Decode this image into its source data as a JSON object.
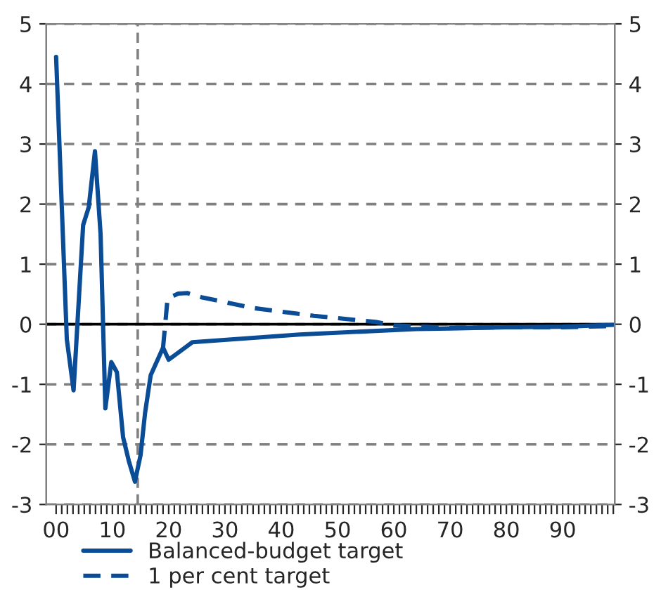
{
  "chart_data": {
    "type": "line",
    "series": [
      {
        "name": "Balanced-budget target",
        "color": "#0b4c96",
        "line_style": "solid",
        "x": [
          0,
          1.9,
          3.1,
          4.8,
          5.8,
          6.9,
          7.9,
          8.75,
          9.8,
          10.8,
          11.9,
          12.9,
          14,
          15,
          15.8,
          16.8,
          19,
          20,
          24.2,
          43.3,
          64,
          70,
          80,
          90,
          99
        ],
        "values": [
          4.45,
          -0.25,
          -1.1,
          1.65,
          1.95,
          2.88,
          1.5,
          -1.4,
          -0.63,
          -0.8,
          -1.88,
          -2.27,
          -2.62,
          -2.18,
          -1.48,
          -0.85,
          -0.39,
          -0.59,
          -0.3,
          -0.17,
          -0.08,
          -0.07,
          -0.05,
          -0.04,
          -0.01
        ]
      },
      {
        "name": "1 per cent target",
        "color": "#0b4c96",
        "line_style": "dashed",
        "x": [
          19,
          19.8,
          21.7,
          23.3,
          25.8,
          35,
          45.8,
          56.7,
          60,
          70,
          80,
          90,
          99
        ],
        "values": [
          -0.39,
          0.43,
          0.51,
          0.52,
          0.45,
          0.27,
          0.14,
          0.04,
          -0.02,
          -0.06,
          -0.05,
          -0.05,
          -0.03
        ]
      }
    ],
    "xlim": [
      -1.75,
      99.25
    ],
    "xticks": [
      {
        "value": 0,
        "label": "00"
      },
      {
        "value": 1,
        "label": null
      },
      {
        "value": 2,
        "label": null
      },
      {
        "value": 3,
        "label": null
      },
      {
        "value": 4,
        "label": null
      },
      {
        "value": 5,
        "label": null
      },
      {
        "value": 6,
        "label": null
      },
      {
        "value": 7,
        "label": null
      },
      {
        "value": 8,
        "label": null
      },
      {
        "value": 9,
        "label": null
      },
      {
        "value": 10,
        "label": "10"
      },
      {
        "value": 11,
        "label": null
      },
      {
        "value": 12,
        "label": null
      },
      {
        "value": 13,
        "label": null
      },
      {
        "value": 14,
        "label": null
      },
      {
        "value": 15,
        "label": null
      },
      {
        "value": 16,
        "label": null
      },
      {
        "value": 17,
        "label": null
      },
      {
        "value": 18,
        "label": null
      },
      {
        "value": 19,
        "label": null
      },
      {
        "value": 20,
        "label": "20"
      },
      {
        "value": 21,
        "label": null
      },
      {
        "value": 22,
        "label": null
      },
      {
        "value": 23,
        "label": null
      },
      {
        "value": 24,
        "label": null
      },
      {
        "value": 25,
        "label": null
      },
      {
        "value": 26,
        "label": null
      },
      {
        "value": 27,
        "label": null
      },
      {
        "value": 28,
        "label": null
      },
      {
        "value": 29,
        "label": null
      },
      {
        "value": 30,
        "label": "30"
      },
      {
        "value": 31,
        "label": null
      },
      {
        "value": 32,
        "label": null
      },
      {
        "value": 33,
        "label": null
      },
      {
        "value": 34,
        "label": null
      },
      {
        "value": 35,
        "label": null
      },
      {
        "value": 36,
        "label": null
      },
      {
        "value": 37,
        "label": null
      },
      {
        "value": 38,
        "label": null
      },
      {
        "value": 39,
        "label": null
      },
      {
        "value": 40,
        "label": "40"
      },
      {
        "value": 41,
        "label": null
      },
      {
        "value": 42,
        "label": null
      },
      {
        "value": 43,
        "label": null
      },
      {
        "value": 44,
        "label": null
      },
      {
        "value": 45,
        "label": null
      },
      {
        "value": 46,
        "label": null
      },
      {
        "value": 47,
        "label": null
      },
      {
        "value": 48,
        "label": null
      },
      {
        "value": 49,
        "label": null
      },
      {
        "value": 50,
        "label": "50"
      },
      {
        "value": 51,
        "label": null
      },
      {
        "value": 52,
        "label": null
      },
      {
        "value": 53,
        "label": null
      },
      {
        "value": 54,
        "label": null
      },
      {
        "value": 55,
        "label": null
      },
      {
        "value": 56,
        "label": null
      },
      {
        "value": 57,
        "label": null
      },
      {
        "value": 58,
        "label": null
      },
      {
        "value": 59,
        "label": null
      },
      {
        "value": 60,
        "label": "60"
      },
      {
        "value": 61,
        "label": null
      },
      {
        "value": 62,
        "label": null
      },
      {
        "value": 63,
        "label": null
      },
      {
        "value": 64,
        "label": null
      },
      {
        "value": 65,
        "label": null
      },
      {
        "value": 66,
        "label": null
      },
      {
        "value": 67,
        "label": null
      },
      {
        "value": 68,
        "label": null
      },
      {
        "value": 69,
        "label": null
      },
      {
        "value": 70,
        "label": "70"
      },
      {
        "value": 71,
        "label": null
      },
      {
        "value": 72,
        "label": null
      },
      {
        "value": 73,
        "label": null
      },
      {
        "value": 74,
        "label": null
      },
      {
        "value": 75,
        "label": null
      },
      {
        "value": 76,
        "label": null
      },
      {
        "value": 77,
        "label": null
      },
      {
        "value": 78,
        "label": null
      },
      {
        "value": 79,
        "label": null
      },
      {
        "value": 80,
        "label": "80"
      },
      {
        "value": 81,
        "label": null
      },
      {
        "value": 82,
        "label": null
      },
      {
        "value": 83,
        "label": null
      },
      {
        "value": 84,
        "label": null
      },
      {
        "value": 85,
        "label": null
      },
      {
        "value": 86,
        "label": null
      },
      {
        "value": 87,
        "label": null
      },
      {
        "value": 88,
        "label": null
      },
      {
        "value": 89,
        "label": null
      },
      {
        "value": 90,
        "label": "90"
      },
      {
        "value": 91,
        "label": null
      },
      {
        "value": 92,
        "label": null
      },
      {
        "value": 93,
        "label": null
      },
      {
        "value": 94,
        "label": null
      },
      {
        "value": 95,
        "label": null
      },
      {
        "value": 96,
        "label": null
      },
      {
        "value": 97,
        "label": null
      },
      {
        "value": 98,
        "label": null
      },
      {
        "value": 99,
        "label": null
      }
    ],
    "ylim": [
      -3,
      5
    ],
    "yticks": [
      -3,
      -2,
      -1,
      0,
      1,
      2,
      3,
      4,
      5
    ],
    "y2lim": [
      -3,
      5
    ],
    "y2ticks": [
      -3,
      -2,
      -1,
      0,
      1,
      2,
      3,
      4,
      5
    ],
    "grid": "y",
    "ref_lines": [
      {
        "axis": "x",
        "value": 14.5,
        "color": "#808080",
        "line_style": "dashed"
      },
      {
        "axis": "y",
        "value": 0,
        "color": "#000000",
        "line_style": "solid"
      }
    ],
    "legend": "bottom",
    "marker": "none"
  }
}
